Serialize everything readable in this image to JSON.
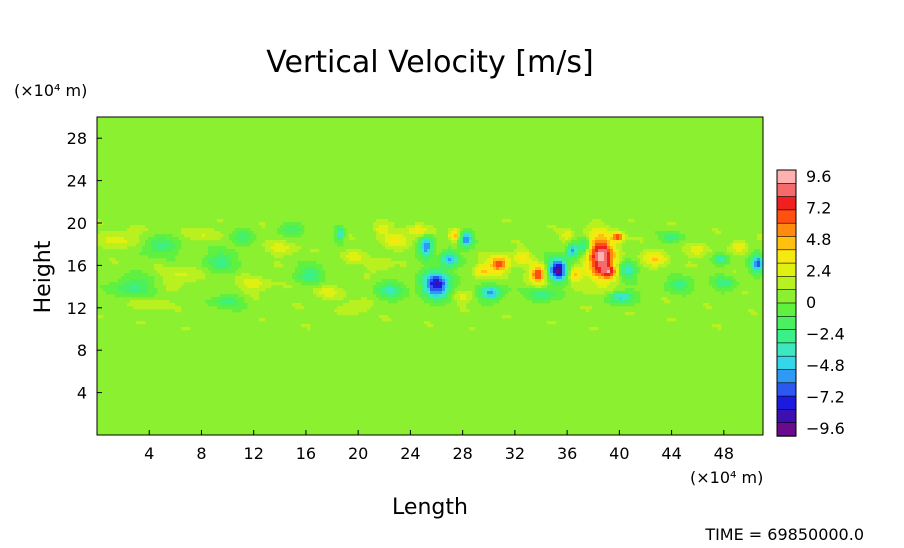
{
  "chart_data": {
    "type": "heatmap",
    "title": "Vertical Velocity [m/s]",
    "xlabel": "Length",
    "ylabel": "Height",
    "x_unit_label": "(×10⁴ m)",
    "y_unit_label": "(×10⁴ m)",
    "xlim": [
      0,
      51
    ],
    "ylim": [
      0,
      30
    ],
    "x_ticks": [
      "4",
      "8",
      "12",
      "16",
      "20",
      "24",
      "28",
      "32",
      "36",
      "40",
      "44",
      "48"
    ],
    "y_ticks": [
      "4",
      "8",
      "12",
      "16",
      "20",
      "24",
      "28"
    ],
    "colorbar": {
      "ticks": [
        "9.6",
        "7.2",
        "4.8",
        "2.4",
        "0",
        "−2.4",
        "−4.8",
        "−7.2",
        "−9.6"
      ],
      "range": [
        -10.4,
        10.4
      ],
      "colors": [
        "#6a0a8c",
        "#3d0fb0",
        "#1a1ae0",
        "#2b58f0",
        "#2f9af5",
        "#34d6e8",
        "#3de8c0",
        "#3af088",
        "#4af060",
        "#60f040",
        "#8af030",
        "#b8f020",
        "#e0f010",
        "#f7e810",
        "#ffc010",
        "#ff8a10",
        "#ff5010",
        "#f02020",
        "#f56a6a",
        "#ffb0b0"
      ]
    },
    "background_value": 0.6,
    "features": [
      {
        "x": 38.6,
        "y": 16.7,
        "value": 9.8,
        "rx": 1.0,
        "ry": 2.0
      },
      {
        "x": 26.0,
        "y": 14.2,
        "value": -8.4,
        "rx": 1.0,
        "ry": 1.2
      },
      {
        "x": 35.3,
        "y": 15.6,
        "value": -9.6,
        "rx": 0.7,
        "ry": 1.0
      },
      {
        "x": 33.8,
        "y": 15.2,
        "value": 7.5,
        "rx": 0.6,
        "ry": 0.8
      },
      {
        "x": 30.8,
        "y": 16.1,
        "value": 6.8,
        "rx": 0.7,
        "ry": 0.8
      },
      {
        "x": 29.5,
        "y": 15.5,
        "value": 4.0,
        "rx": 0.6,
        "ry": 0.6
      },
      {
        "x": 30.2,
        "y": 13.4,
        "value": -6.0,
        "rx": 0.8,
        "ry": 0.6
      },
      {
        "x": 25.2,
        "y": 17.8,
        "value": -6.5,
        "rx": 0.5,
        "ry": 0.9
      },
      {
        "x": 27.0,
        "y": 16.6,
        "value": -5.5,
        "rx": 0.6,
        "ry": 0.7
      },
      {
        "x": 28.3,
        "y": 18.5,
        "value": -6.5,
        "rx": 0.5,
        "ry": 0.7
      },
      {
        "x": 27.4,
        "y": 18.8,
        "value": 5.0,
        "rx": 0.4,
        "ry": 0.6
      },
      {
        "x": 32.6,
        "y": 16.8,
        "value": 3.5,
        "rx": 0.6,
        "ry": 0.6
      },
      {
        "x": 36.4,
        "y": 17.4,
        "value": -5.5,
        "rx": 0.4,
        "ry": 0.6
      },
      {
        "x": 37.3,
        "y": 17.8,
        "value": -4.5,
        "rx": 0.4,
        "ry": 0.7
      },
      {
        "x": 36.6,
        "y": 15.1,
        "value": 4.8,
        "rx": 0.5,
        "ry": 0.6
      },
      {
        "x": 39.9,
        "y": 18.7,
        "value": 6.5,
        "rx": 0.4,
        "ry": 0.4
      },
      {
        "x": 39.3,
        "y": 15.4,
        "value": 4.5,
        "rx": 0.5,
        "ry": 0.5
      },
      {
        "x": 40.2,
        "y": 13.0,
        "value": -4.8,
        "rx": 0.9,
        "ry": 0.5
      },
      {
        "x": 40.6,
        "y": 15.5,
        "value": -4.0,
        "rx": 0.6,
        "ry": 0.8
      },
      {
        "x": 42.8,
        "y": 16.7,
        "value": 4.2,
        "rx": 0.8,
        "ry": 0.7
      },
      {
        "x": 24.6,
        "y": 19.2,
        "value": 3.6,
        "rx": 0.8,
        "ry": 0.5
      },
      {
        "x": 23.0,
        "y": 18.4,
        "value": 3.2,
        "rx": 1.0,
        "ry": 0.7
      },
      {
        "x": 21.8,
        "y": 19.4,
        "value": 3.0,
        "rx": 0.5,
        "ry": 0.5
      },
      {
        "x": 18.6,
        "y": 19.0,
        "value": -4.8,
        "rx": 0.3,
        "ry": 0.6
      },
      {
        "x": 19.6,
        "y": 16.8,
        "value": 2.6,
        "rx": 0.8,
        "ry": 0.6
      },
      {
        "x": 21.6,
        "y": 16.0,
        "value": 2.3,
        "rx": 0.8,
        "ry": 0.6
      },
      {
        "x": 22.4,
        "y": 13.6,
        "value": -3.0,
        "rx": 1.0,
        "ry": 0.8
      },
      {
        "x": 50.6,
        "y": 16.2,
        "value": -6.5,
        "rx": 0.5,
        "ry": 0.8
      },
      {
        "x": 49.2,
        "y": 17.8,
        "value": 4.0,
        "rx": 0.5,
        "ry": 0.5
      },
      {
        "x": 46.0,
        "y": 17.4,
        "value": 3.0,
        "rx": 0.7,
        "ry": 0.6
      },
      {
        "x": 47.8,
        "y": 16.6,
        "value": -3.2,
        "rx": 0.5,
        "ry": 0.5
      },
      {
        "x": 48.0,
        "y": 14.3,
        "value": -2.5,
        "rx": 0.8,
        "ry": 0.6
      },
      {
        "x": 44.6,
        "y": 14.2,
        "value": -2.5,
        "rx": 1.0,
        "ry": 0.6
      },
      {
        "x": 34.0,
        "y": 13.2,
        "value": -2.8,
        "rx": 1.0,
        "ry": 0.6
      },
      {
        "x": 28.0,
        "y": 13.0,
        "value": 2.5,
        "rx": 0.8,
        "ry": 0.5
      },
      {
        "x": 1.8,
        "y": 18.5,
        "value": 2.5,
        "rx": 1.5,
        "ry": 0.8
      },
      {
        "x": 4.8,
        "y": 17.8,
        "value": -2.6,
        "rx": 1.2,
        "ry": 0.8
      },
      {
        "x": 6.4,
        "y": 15.0,
        "value": 2.4,
        "rx": 1.2,
        "ry": 0.8
      },
      {
        "x": 2.8,
        "y": 14.0,
        "value": -2.4,
        "rx": 1.4,
        "ry": 0.9
      },
      {
        "x": 9.6,
        "y": 16.4,
        "value": -2.4,
        "rx": 1.2,
        "ry": 0.9
      },
      {
        "x": 12.0,
        "y": 14.2,
        "value": 2.3,
        "rx": 1.2,
        "ry": 0.8
      },
      {
        "x": 14.2,
        "y": 17.6,
        "value": 2.4,
        "rx": 1.0,
        "ry": 0.7
      },
      {
        "x": 16.4,
        "y": 15.2,
        "value": -2.5,
        "rx": 1.0,
        "ry": 0.8
      },
      {
        "x": 17.6,
        "y": 13.4,
        "value": 2.4,
        "rx": 1.0,
        "ry": 0.6
      },
      {
        "x": 8.2,
        "y": 19.0,
        "value": 2.2,
        "rx": 1.0,
        "ry": 0.6
      },
      {
        "x": 11.0,
        "y": 18.6,
        "value": -2.2,
        "rx": 0.8,
        "ry": 0.6
      },
      {
        "x": 15.0,
        "y": 19.4,
        "value": -2.2,
        "rx": 0.9,
        "ry": 0.5
      },
      {
        "x": 4.0,
        "y": 12.4,
        "value": 2.0,
        "rx": 1.2,
        "ry": 0.6
      },
      {
        "x": 10.0,
        "y": 12.6,
        "value": -2.0,
        "rx": 1.2,
        "ry": 0.6
      },
      {
        "x": 20.0,
        "y": 12.2,
        "value": 2.2,
        "rx": 1.0,
        "ry": 0.6
      },
      {
        "x": 36.0,
        "y": 18.8,
        "value": 3.0,
        "rx": 0.5,
        "ry": 0.5
      },
      {
        "x": 44.0,
        "y": 18.6,
        "value": -2.6,
        "rx": 0.7,
        "ry": 0.5
      }
    ]
  },
  "footer": {
    "time_label": "TIME = 69850000.0"
  }
}
